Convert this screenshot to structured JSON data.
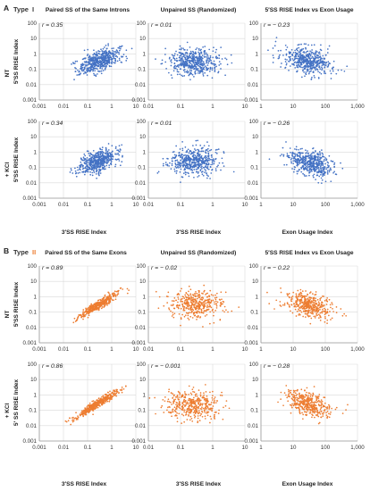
{
  "figure": {
    "panels": [
      {
        "letter": "A",
        "type_prefix": "Type",
        "type_numeral": "I",
        "numeral_color": "#3a3a3a",
        "marker_color": "#4472c4",
        "column_titles": [
          "Paired SS of the Same Introns",
          "Unpaired SS (Randomized)",
          "5′SS RISE Index vs Exon Usage"
        ],
        "conditions": [
          "NT",
          "+ KCl"
        ],
        "y_labels": [
          [
            "5′SS RISE Index",
            "",
            ""
          ],
          [
            "5′SS RISE Index",
            "",
            ""
          ]
        ],
        "x_labels": [
          "3′SS RISE Index",
          "3′SS RISE Index",
          "Exon Usage Index"
        ]
      },
      {
        "letter": "B",
        "type_prefix": "Type",
        "type_numeral": "II",
        "numeral_color": "#ed7d31",
        "marker_color": "#ed7d31",
        "column_titles": [
          "Paired SS of the Same Exons",
          "Unpaired SS (Randomized)",
          "5′SS RISE Index vs Exon Usage"
        ],
        "conditions": [
          "NT",
          "+ KCl"
        ],
        "y_labels": [
          [
            "5′SS RISE Index",
            "",
            ""
          ],
          [
            "5′ SS RISE Index",
            "",
            ""
          ]
        ],
        "x_labels": [
          "3′SS RISE Index",
          "3′SS RISE Index",
          "Exon Usage Index"
        ]
      }
    ]
  },
  "chart_data": [
    {
      "type": "scatter",
      "panel": "A",
      "column": 1,
      "condition": "NT",
      "r_label": "r = 0.35",
      "r": 0.35,
      "xscale": "log",
      "yscale": "log",
      "xlim": [
        0.001,
        10
      ],
      "ylim": [
        0.001,
        100
      ],
      "xticks": [
        "0.001",
        "0.01",
        "0.1",
        "1",
        "10"
      ],
      "yticks": [
        "100",
        "10",
        "1",
        "0.1",
        "0.01",
        "0.001"
      ],
      "cloud": {
        "x_center": 0.3,
        "y_center": 0.35,
        "x_sigma_decades": 0.42,
        "y_sigma_decades": 0.42,
        "count": 500
      },
      "grid": true,
      "legend": "none"
    },
    {
      "type": "scatter",
      "panel": "A",
      "column": 2,
      "condition": "NT",
      "r_label": "r = 0.01",
      "r": 0.01,
      "xscale": "log",
      "yscale": "log",
      "xlim": [
        0.01,
        10
      ],
      "ylim": [
        0.001,
        100
      ],
      "xticks": [
        "0.01",
        "0.1",
        "1",
        "10"
      ],
      "yticks": [
        "100",
        "10",
        "1",
        "0.1",
        "0.01",
        "0.001"
      ],
      "cloud": {
        "x_center": 0.25,
        "y_center": 0.3,
        "x_sigma_decades": 0.4,
        "y_sigma_decades": 0.45,
        "count": 500
      },
      "grid": true,
      "legend": "none"
    },
    {
      "type": "scatter",
      "panel": "A",
      "column": 3,
      "condition": "NT",
      "r_label": "r = − 0.23",
      "r": -0.23,
      "xscale": "log",
      "yscale": "log",
      "xlim": [
        1,
        1000
      ],
      "ylim": [
        0.001,
        100
      ],
      "xticks": [
        "1",
        "10",
        "100",
        "1,000"
      ],
      "yticks": [
        "100",
        "10",
        "1",
        "0.1",
        "0.01",
        "0.001"
      ],
      "cloud": {
        "x_center": 30,
        "y_center": 0.35,
        "x_sigma_decades": 0.38,
        "y_sigma_decades": 0.45,
        "count": 500
      },
      "grid": true,
      "legend": "none"
    },
    {
      "type": "scatter",
      "panel": "A",
      "column": 1,
      "condition": "+ KCl",
      "r_label": "r = 0.34",
      "r": 0.34,
      "xscale": "log",
      "yscale": "log",
      "xlim": [
        0.001,
        10
      ],
      "ylim": [
        0.001,
        100
      ],
      "xticks": [
        "0.001",
        "0.01",
        "0.1",
        "1",
        "10"
      ],
      "yticks": [
        "100",
        "10",
        "1",
        "0.1",
        "0.01",
        "0.001"
      ],
      "cloud": {
        "x_center": 0.25,
        "y_center": 0.25,
        "x_sigma_decades": 0.42,
        "y_sigma_decades": 0.4,
        "count": 500
      },
      "grid": true,
      "legend": "none"
    },
    {
      "type": "scatter",
      "panel": "A",
      "column": 2,
      "condition": "+ KCl",
      "r_label": "r = 0.01",
      "r": 0.01,
      "xscale": "log",
      "yscale": "log",
      "xlim": [
        0.01,
        10
      ],
      "ylim": [
        0.001,
        100
      ],
      "xticks": [
        "0.01",
        "0.1",
        "1",
        "10"
      ],
      "yticks": [
        "100",
        "10",
        "1",
        "0.1",
        "0.01",
        "0.001"
      ],
      "cloud": {
        "x_center": 0.25,
        "y_center": 0.25,
        "x_sigma_decades": 0.38,
        "y_sigma_decades": 0.45,
        "count": 500
      },
      "grid": true,
      "legend": "none"
    },
    {
      "type": "scatter",
      "panel": "A",
      "column": 3,
      "condition": "+ KCl",
      "r_label": "r = − 0.26",
      "r": -0.26,
      "xscale": "log",
      "yscale": "log",
      "xlim": [
        1,
        1000
      ],
      "ylim": [
        0.001,
        100
      ],
      "xticks": [
        "1",
        "10",
        "100",
        "1,000"
      ],
      "yticks": [
        "100",
        "10",
        "1",
        "0.1",
        "0.01",
        "0.001"
      ],
      "cloud": {
        "x_center": 35,
        "y_center": 0.2,
        "x_sigma_decades": 0.35,
        "y_sigma_decades": 0.42,
        "count": 500
      },
      "grid": true,
      "legend": "none"
    },
    {
      "type": "scatter",
      "panel": "B",
      "column": 1,
      "condition": "NT",
      "r_label": "r = 0.89",
      "r": 0.89,
      "xscale": "log",
      "yscale": "log",
      "xlim": [
        0.001,
        10
      ],
      "ylim": [
        0.001,
        100
      ],
      "xticks": [
        "0.001",
        "0.01",
        "0.1",
        "1",
        "10"
      ],
      "yticks": [
        "100",
        "10",
        "1",
        "0.1",
        "0.01",
        "0.001"
      ],
      "cloud": {
        "x_center": 0.3,
        "y_center": 0.3,
        "x_sigma_decades": 0.45,
        "y_sigma_decades": 0.45,
        "count": 400
      },
      "grid": true,
      "legend": "none"
    },
    {
      "type": "scatter",
      "panel": "B",
      "column": 2,
      "condition": "NT",
      "r_label": "r = − 0.02",
      "r": -0.02,
      "xscale": "log",
      "yscale": "log",
      "xlim": [
        0.01,
        10
      ],
      "ylim": [
        0.001,
        100
      ],
      "xticks": [
        "0.01",
        "0.1",
        "1",
        "10"
      ],
      "yticks": [
        "100",
        "10",
        "1",
        "0.1",
        "0.01",
        "0.001"
      ],
      "cloud": {
        "x_center": 0.3,
        "y_center": 0.3,
        "x_sigma_decades": 0.42,
        "y_sigma_decades": 0.45,
        "count": 400
      },
      "grid": true,
      "legend": "none"
    },
    {
      "type": "scatter",
      "panel": "B",
      "column": 3,
      "condition": "NT",
      "r_label": "r = − 0.22",
      "r": -0.22,
      "xscale": "log",
      "yscale": "log",
      "xlim": [
        1,
        1000
      ],
      "ylim": [
        0.001,
        100
      ],
      "xticks": [
        "1",
        "10",
        "100",
        "1,000"
      ],
      "yticks": [
        "100",
        "10",
        "1",
        "0.1",
        "0.01",
        "0.001"
      ],
      "cloud": {
        "x_center": 30,
        "y_center": 0.3,
        "x_sigma_decades": 0.35,
        "y_sigma_decades": 0.42,
        "count": 400
      },
      "grid": true,
      "legend": "none"
    },
    {
      "type": "scatter",
      "panel": "B",
      "column": 1,
      "condition": "+ KCl",
      "r_label": "r = 0.86",
      "r": 0.86,
      "xscale": "log",
      "yscale": "log",
      "xlim": [
        0.001,
        10
      ],
      "ylim": [
        0.001,
        100
      ],
      "xticks": [
        "0.001",
        "0.01",
        "0.1",
        "1",
        "10"
      ],
      "yticks": [
        "100",
        "10",
        "1",
        "0.1",
        "0.01",
        "0.001"
      ],
      "cloud": {
        "x_center": 0.25,
        "y_center": 0.25,
        "x_sigma_decades": 0.45,
        "y_sigma_decades": 0.45,
        "count": 400
      },
      "grid": true,
      "legend": "none"
    },
    {
      "type": "scatter",
      "panel": "B",
      "column": 2,
      "condition": "+ KCl",
      "r_label": "r = − 0.001",
      "r": -0.001,
      "xscale": "log",
      "yscale": "log",
      "xlim": [
        0.01,
        10
      ],
      "ylim": [
        0.001,
        100
      ],
      "xticks": [
        "0.01",
        "0.1",
        "1",
        "10"
      ],
      "yticks": [
        "100",
        "10",
        "1",
        "0.1",
        "0.01",
        "0.001"
      ],
      "cloud": {
        "x_center": 0.25,
        "y_center": 0.25,
        "x_sigma_decades": 0.42,
        "y_sigma_decades": 0.45,
        "count": 400
      },
      "grid": true,
      "legend": "none"
    },
    {
      "type": "scatter",
      "panel": "B",
      "column": 3,
      "condition": "+ KCl",
      "r_label": "r = − 0.28",
      "r": -0.28,
      "xscale": "log",
      "yscale": "log",
      "xlim": [
        1,
        1000
      ],
      "ylim": [
        0.001,
        100
      ],
      "xticks": [
        "1",
        "10",
        "100",
        "1,000"
      ],
      "yticks": [
        "100",
        "10",
        "1",
        "0.1",
        "0.01",
        "0.001"
      ],
      "cloud": {
        "x_center": 30,
        "y_center": 0.25,
        "x_sigma_decades": 0.35,
        "y_sigma_decades": 0.42,
        "count": 400
      },
      "grid": true,
      "legend": "none"
    }
  ]
}
